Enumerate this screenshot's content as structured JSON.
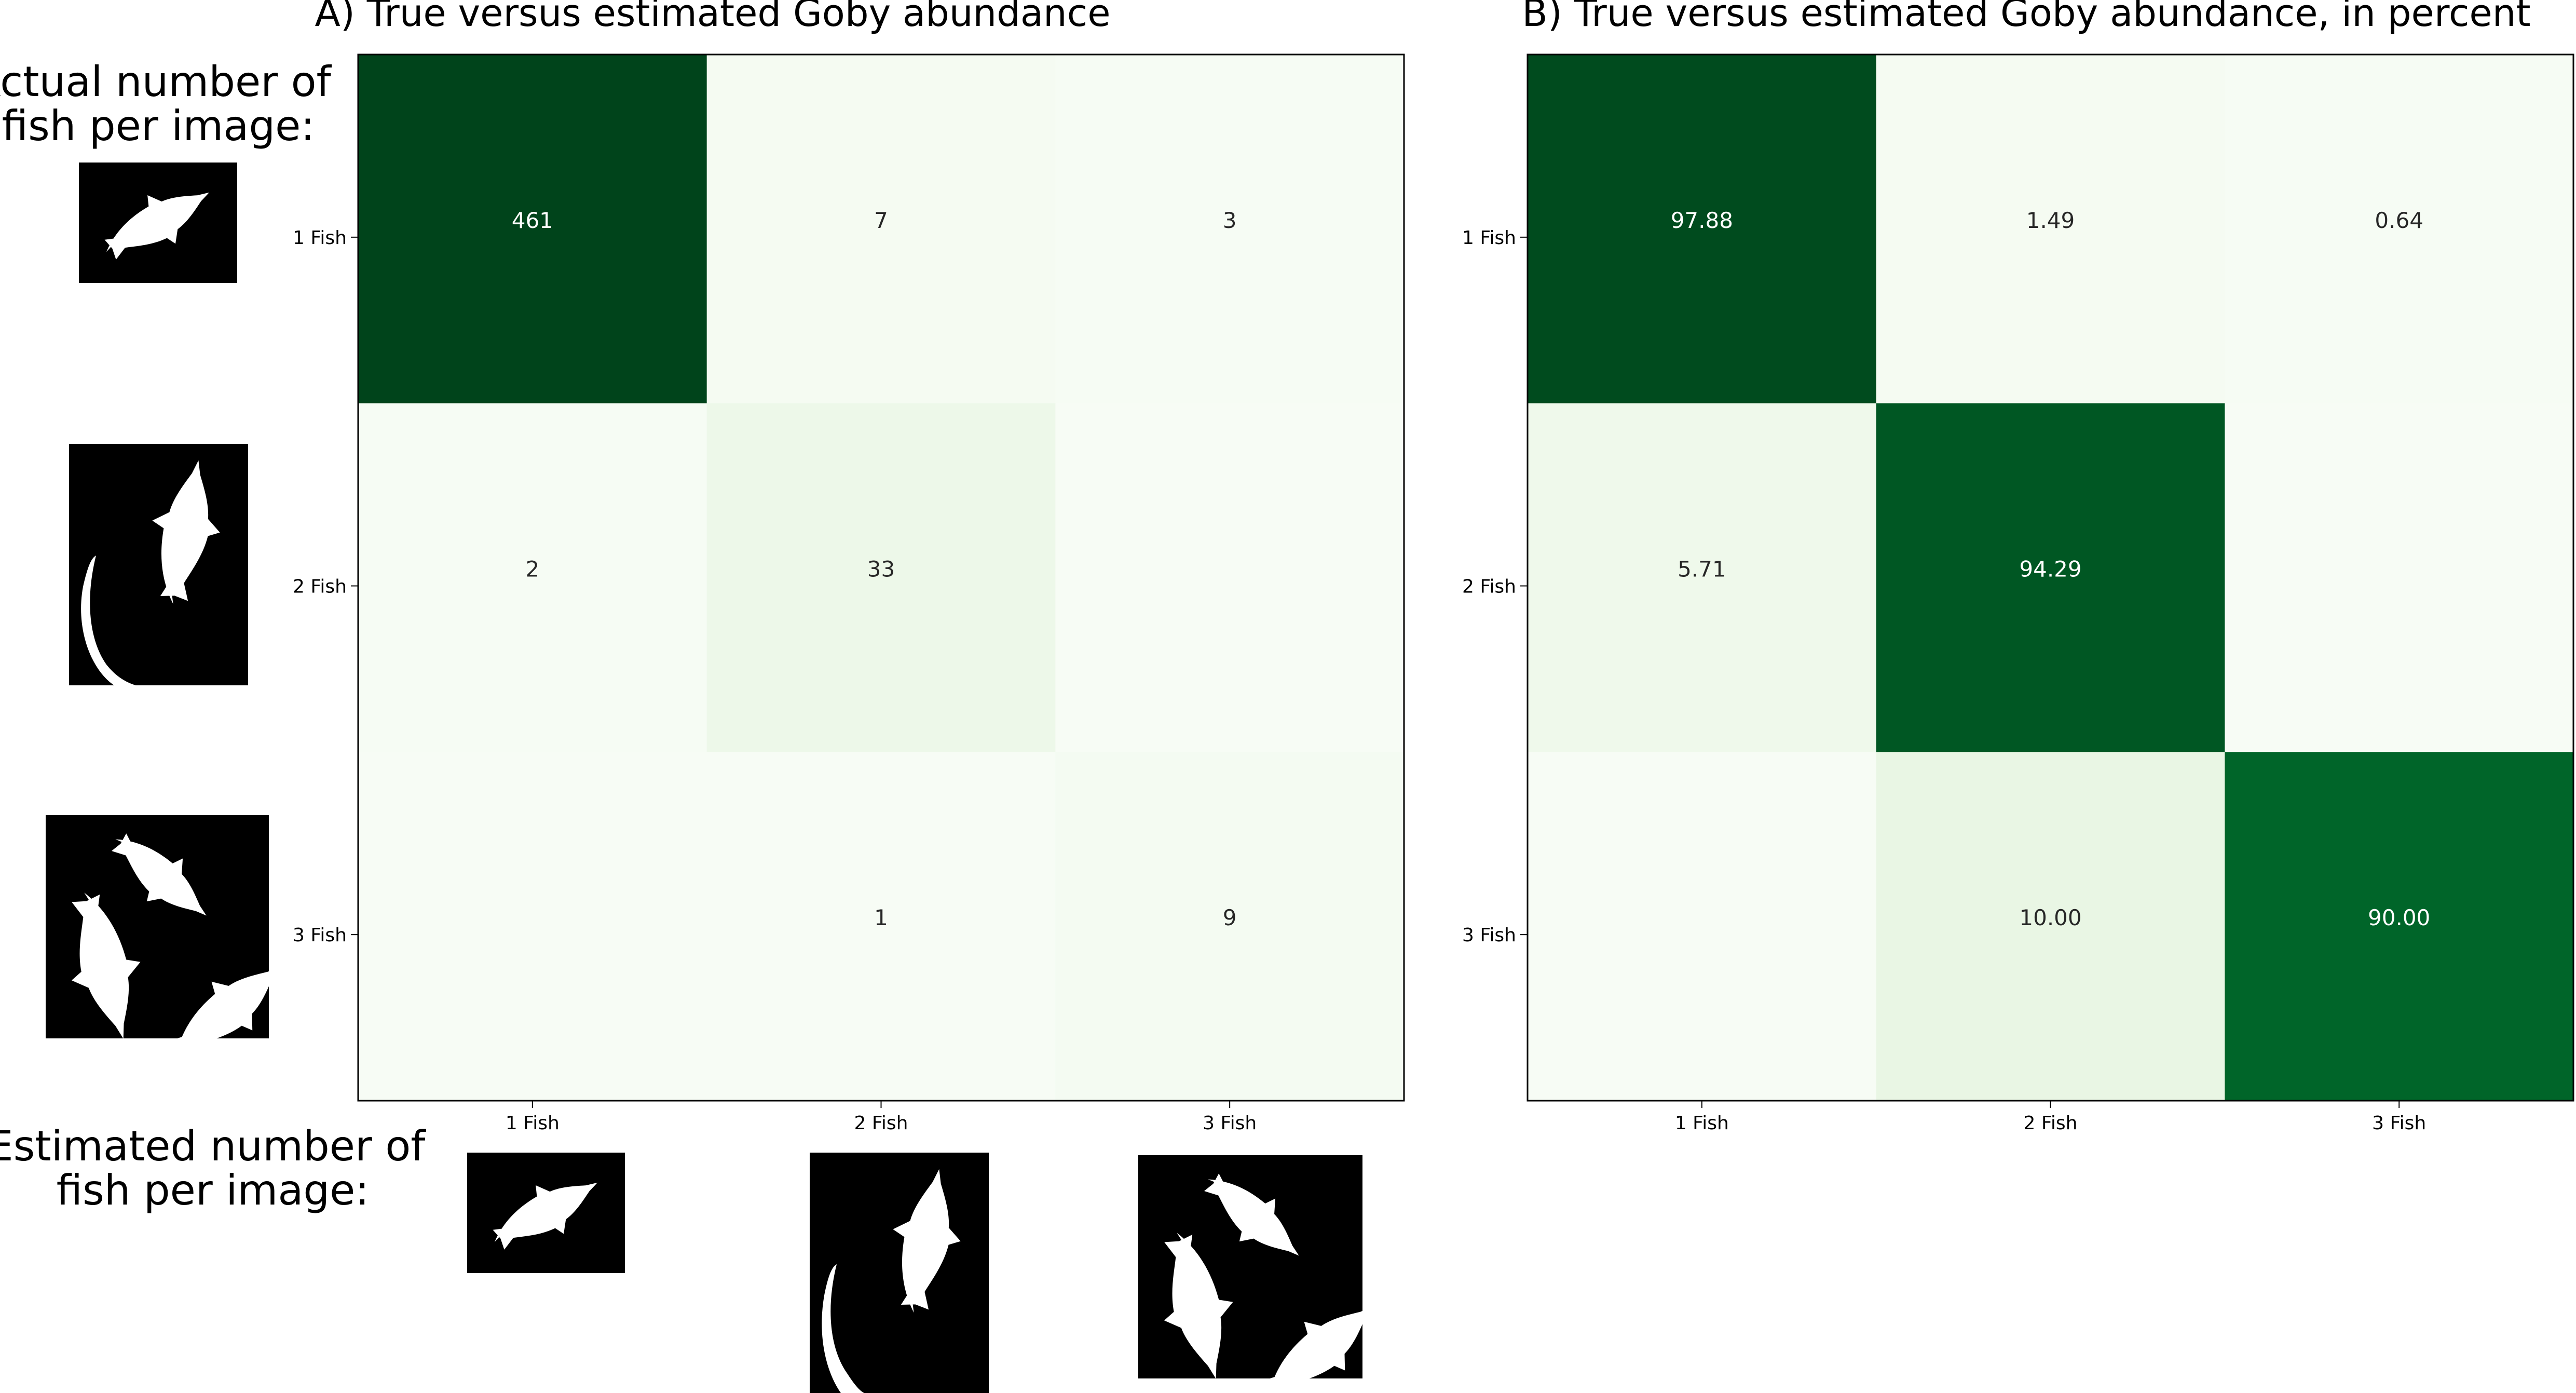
{
  "figure": {
    "side_labels": {
      "actual": [
        "Actual number of",
        "fish per image:"
      ],
      "estimated": [
        "Estimated number of",
        "fish per image:"
      ]
    },
    "icon_names": [
      "fish-1-silhouette-icon",
      "fish-2-silhouette-icon",
      "fish-3-silhouette-icon"
    ]
  },
  "chart_data": [
    {
      "type": "heatmap",
      "title": "A) True versus estimated Goby abundance",
      "xlabel": "",
      "ylabel": "",
      "x_categories": [
        "1 Fish",
        "2 Fish",
        "3 Fish"
      ],
      "y_categories": [
        "1 Fish",
        "2 Fish",
        "3 Fish"
      ],
      "values": [
        [
          461,
          7,
          3
        ],
        [
          2,
          33,
          0
        ],
        [
          0,
          1,
          9
        ]
      ],
      "cell_labels": [
        [
          "461",
          "7",
          "3"
        ],
        [
          "2",
          "33",
          ""
        ],
        [
          "",
          "1",
          "9"
        ]
      ],
      "colormap": "Greens",
      "vmax": 461,
      "colors": {
        "light": "#f7fcf5",
        "dark": "#00441b",
        "label_on_dark": "#ffffff",
        "label_on_light": "#262626"
      }
    },
    {
      "type": "heatmap",
      "title": "B) True versus estimated Goby abundance, in percent",
      "xlabel": "",
      "ylabel": "",
      "x_categories": [
        "1 Fish",
        "2 Fish",
        "3 Fish"
      ],
      "y_categories": [
        "1 Fish",
        "2 Fish",
        "3 Fish"
      ],
      "values": [
        [
          97.88,
          1.49,
          0.64
        ],
        [
          5.71,
          94.29,
          0
        ],
        [
          0,
          10.0,
          90.0
        ]
      ],
      "cell_labels": [
        [
          "97.88",
          "1.49",
          "0.64"
        ],
        [
          "5.71",
          "94.29",
          ""
        ],
        [
          "",
          "10.00",
          "90.00"
        ]
      ],
      "colormap": "Greens",
      "vmax": 100,
      "colors": {
        "light": "#f7fcf5",
        "dark": "#00441b",
        "label_on_dark": "#ffffff",
        "label_on_light": "#262626"
      }
    }
  ]
}
